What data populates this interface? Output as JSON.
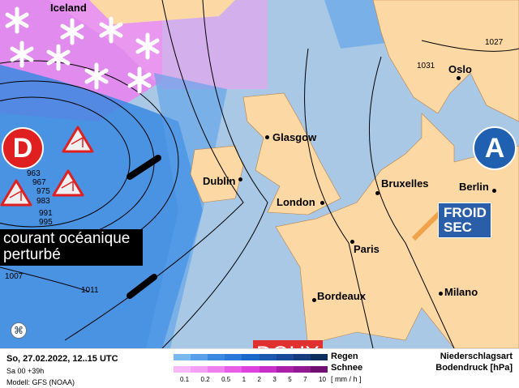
{
  "map": {
    "region_label": "Iceland",
    "cities": [
      "Glasgow",
      "Dublin",
      "London",
      "Bruxelles",
      "Paris",
      "Bordeaux",
      "Milano",
      "Berlin",
      "Oslo"
    ],
    "isobars": [
      "963",
      "967",
      "975",
      "983",
      "991",
      "995",
      "1007",
      "1011",
      "1027",
      "1031"
    ],
    "low_label": "D",
    "high_label": "A",
    "callout_ocean": "courant océanique perturbé",
    "callout_cold": "FROID SEC",
    "callout_mild": "DOUX",
    "colors": {
      "sea": "#a8c8e6",
      "land": "#fcd8a4",
      "rain": "#2f7fd8",
      "snow": "#f070f0",
      "low": "#e02020",
      "high": "#2060b0",
      "mild": "#e03030"
    }
  },
  "legend": {
    "datetime": "So, 27.02.2022, 12..15 UTC",
    "run": "Sa 00 +39h",
    "model": "Modell: GFS (NOAA)",
    "rain": "Regen",
    "snow": "Schnee",
    "unit": "[ mm / h ]",
    "ticks": [
      "0.1",
      "0.2",
      "0.5",
      "1",
      "2",
      "3",
      "5",
      "7",
      "10"
    ],
    "title1": "Niederschlagsart",
    "title2": "Bodendruck [hPa]"
  }
}
